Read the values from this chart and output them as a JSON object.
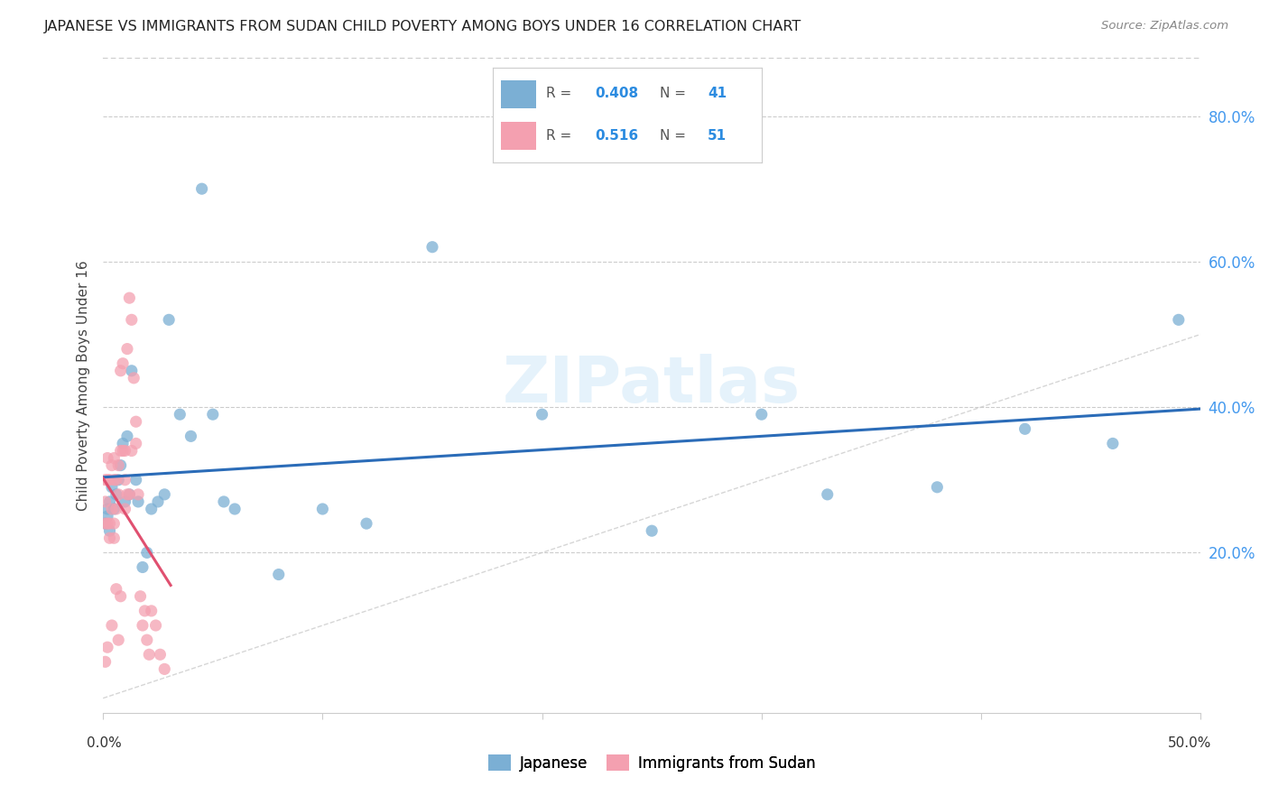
{
  "title": "JAPANESE VS IMMIGRANTS FROM SUDAN CHILD POVERTY AMONG BOYS UNDER 16 CORRELATION CHART",
  "source": "Source: ZipAtlas.com",
  "ylabel": "Child Poverty Among Boys Under 16",
  "x_lim": [
    0.0,
    0.5
  ],
  "y_lim": [
    -0.02,
    0.88
  ],
  "R_japanese": 0.408,
  "N_japanese": 41,
  "R_sudan": 0.516,
  "N_sudan": 51,
  "color_japanese": "#7BAFD4",
  "color_sudan": "#F4A0B0",
  "color_trendline_japanese": "#2B6CB8",
  "color_trendline_sudan": "#E05070",
  "color_diagonal": "#CCCCCC",
  "background_color": "#FFFFFF",
  "japanese_x": [
    0.001,
    0.002,
    0.002,
    0.003,
    0.003,
    0.004,
    0.005,
    0.006,
    0.007,
    0.008,
    0.009,
    0.01,
    0.011,
    0.012,
    0.013,
    0.015,
    0.016,
    0.018,
    0.02,
    0.022,
    0.025,
    0.028,
    0.03,
    0.035,
    0.04,
    0.045,
    0.05,
    0.055,
    0.06,
    0.08,
    0.1,
    0.12,
    0.15,
    0.2,
    0.25,
    0.3,
    0.33,
    0.38,
    0.42,
    0.46,
    0.49
  ],
  "japanese_y": [
    0.24,
    0.26,
    0.25,
    0.27,
    0.23,
    0.29,
    0.26,
    0.28,
    0.3,
    0.32,
    0.35,
    0.27,
    0.36,
    0.28,
    0.45,
    0.3,
    0.27,
    0.18,
    0.2,
    0.26,
    0.27,
    0.28,
    0.52,
    0.39,
    0.36,
    0.7,
    0.39,
    0.27,
    0.26,
    0.17,
    0.26,
    0.24,
    0.62,
    0.39,
    0.23,
    0.39,
    0.28,
    0.29,
    0.37,
    0.35,
    0.52
  ],
  "sudan_x": [
    0.001,
    0.001,
    0.001,
    0.001,
    0.002,
    0.002,
    0.002,
    0.002,
    0.003,
    0.003,
    0.003,
    0.004,
    0.004,
    0.004,
    0.005,
    0.005,
    0.005,
    0.005,
    0.006,
    0.006,
    0.006,
    0.007,
    0.007,
    0.007,
    0.008,
    0.008,
    0.008,
    0.009,
    0.009,
    0.01,
    0.01,
    0.01,
    0.011,
    0.011,
    0.012,
    0.012,
    0.013,
    0.013,
    0.014,
    0.015,
    0.015,
    0.016,
    0.017,
    0.018,
    0.019,
    0.02,
    0.021,
    0.022,
    0.024,
    0.026,
    0.028
  ],
  "sudan_y": [
    0.24,
    0.27,
    0.3,
    0.05,
    0.24,
    0.3,
    0.33,
    0.07,
    0.24,
    0.3,
    0.22,
    0.32,
    0.26,
    0.1,
    0.3,
    0.33,
    0.24,
    0.22,
    0.26,
    0.3,
    0.15,
    0.28,
    0.32,
    0.08,
    0.34,
    0.45,
    0.14,
    0.34,
    0.46,
    0.3,
    0.34,
    0.26,
    0.28,
    0.48,
    0.28,
    0.55,
    0.52,
    0.34,
    0.44,
    0.35,
    0.38,
    0.28,
    0.14,
    0.1,
    0.12,
    0.08,
    0.06,
    0.12,
    0.1,
    0.06,
    0.04
  ],
  "y_ticks": [
    0.0,
    0.2,
    0.4,
    0.6,
    0.8
  ],
  "y_tick_labels": [
    "",
    "20.0%",
    "40.0%",
    "60.0%",
    "80.0%"
  ],
  "x_ticks": [
    0.0,
    0.1,
    0.2,
    0.3,
    0.4,
    0.5
  ],
  "watermark": "ZIPatlas"
}
